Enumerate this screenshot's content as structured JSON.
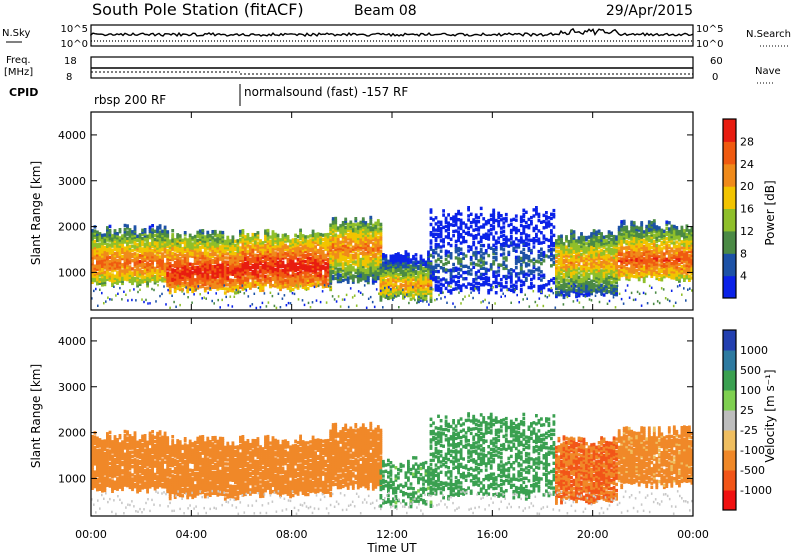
{
  "header": {
    "station": "South Pole Station (fitACF)",
    "beam": "Beam 08",
    "date": "29/Apr/2015"
  },
  "status_panels": {
    "nsky": {
      "label": "N.Sky",
      "ticks": [
        "10^5",
        "10^0"
      ]
    },
    "nsearch": {
      "label": "N.Search",
      "ticks": [
        "10^5",
        "10^0"
      ]
    },
    "freq": {
      "label_top": "Freq.",
      "label_bottom": "[MHz]",
      "ticks": [
        "18",
        "8"
      ]
    },
    "nave": {
      "label": "Nave",
      "ticks": [
        "60",
        "0"
      ]
    },
    "cpid": {
      "label": "CPID",
      "segments": [
        {
          "name": "rbsp 200 RF",
          "start_h": 0,
          "end_h": 6
        },
        {
          "name": "normalsound (fast) -157 RF",
          "start_h": 6,
          "end_h": 24
        }
      ]
    }
  },
  "colors": {
    "power": [
      "#0b22e8",
      "#1d52a6",
      "#4b8a45",
      "#8fbf2a",
      "#f2c400",
      "#f08a1a",
      "#f05a10",
      "#e81c10"
    ],
    "velocity": [
      "#f01010",
      "#f25518",
      "#f08828",
      "#efbe60",
      "#bdbdbd",
      "#7fd050",
      "#3aa050",
      "#2d7aa0",
      "#2340b0"
    ],
    "ground": [
      "#c8c8c8"
    ]
  },
  "chart_data": [
    {
      "type": "heatmap",
      "name": "power-panel",
      "ylabel": "Slant Range [km]",
      "yticks": [
        1000,
        2000,
        3000,
        4000
      ],
      "xlim": [
        0,
        24
      ],
      "ylim": [
        180,
        4500
      ],
      "colorbar": {
        "label": "Power [dB]",
        "ticks": [
          "4",
          "8",
          "12",
          "16",
          "20",
          "24",
          "28"
        ],
        "range": [
          0,
          30
        ]
      },
      "bands": [
        {
          "start_h": 0.0,
          "end_h": 3.0,
          "low_km": 750,
          "high_km": 1900,
          "peak_km": 1200,
          "level": 24
        },
        {
          "start_h": 3.0,
          "end_h": 6.0,
          "low_km": 600,
          "high_km": 1800,
          "peak_km": 1000,
          "level": 28
        },
        {
          "start_h": 6.0,
          "end_h": 9.5,
          "low_km": 650,
          "high_km": 1800,
          "peak_km": 1100,
          "level": 29
        },
        {
          "start_h": 9.5,
          "end_h": 11.5,
          "low_km": 800,
          "high_km": 2100,
          "peak_km": 1500,
          "level": 22
        },
        {
          "start_h": 11.5,
          "end_h": 13.5,
          "low_km": 400,
          "high_km": 1300,
          "peak_km": 700,
          "level": 20
        },
        {
          "start_h": 13.5,
          "end_h": 18.5,
          "low_km": 600,
          "high_km": 2300,
          "peak_km": 1200,
          "level": 8
        },
        {
          "start_h": 18.5,
          "end_h": 21.0,
          "low_km": 500,
          "high_km": 1800,
          "peak_km": 1200,
          "level": 20
        },
        {
          "start_h": 21.0,
          "end_h": 24.0,
          "low_km": 850,
          "high_km": 2000,
          "peak_km": 1250,
          "level": 25
        }
      ]
    },
    {
      "type": "heatmap",
      "name": "velocity-panel",
      "ylabel": "Slant Range [km]",
      "xlabel": "Time UT",
      "xticks": [
        "00:00",
        "04:00",
        "08:00",
        "12:00",
        "16:00",
        "20:00",
        "00:00"
      ],
      "yticks": [
        1000,
        2000,
        3000,
        4000
      ],
      "xlim": [
        0,
        24
      ],
      "ylim": [
        180,
        4500
      ],
      "colorbar": {
        "label": "Velocity [m s⁻¹]",
        "ticks": [
          "1000",
          "500",
          "100",
          "25",
          "-25",
          "-100",
          "-500",
          "-1000"
        ],
        "range": [
          -1000,
          1000
        ]
      },
      "bands": [
        {
          "start_h": 0.0,
          "end_h": 3.0,
          "low_km": 750,
          "high_km": 1900,
          "peak_km": 1200,
          "level": -300
        },
        {
          "start_h": 3.0,
          "end_h": 6.0,
          "low_km": 600,
          "high_km": 1800,
          "peak_km": 1000,
          "level": -250
        },
        {
          "start_h": 6.0,
          "end_h": 9.5,
          "low_km": 650,
          "high_km": 1800,
          "peak_km": 1100,
          "level": -250
        },
        {
          "start_h": 9.5,
          "end_h": 11.5,
          "low_km": 800,
          "high_km": 2100,
          "peak_km": 1500,
          "level": -350
        },
        {
          "start_h": 11.5,
          "end_h": 13.5,
          "low_km": 400,
          "high_km": 1300,
          "peak_km": 700,
          "level": 200
        },
        {
          "start_h": 13.5,
          "end_h": 18.5,
          "low_km": 600,
          "high_km": 2300,
          "peak_km": 1200,
          "level": 300
        },
        {
          "start_h": 18.5,
          "end_h": 21.0,
          "low_km": 500,
          "high_km": 1800,
          "peak_km": 1200,
          "level": -500
        },
        {
          "start_h": 21.0,
          "end_h": 24.0,
          "low_km": 850,
          "high_km": 2000,
          "peak_km": 1250,
          "level": -200
        }
      ]
    }
  ]
}
